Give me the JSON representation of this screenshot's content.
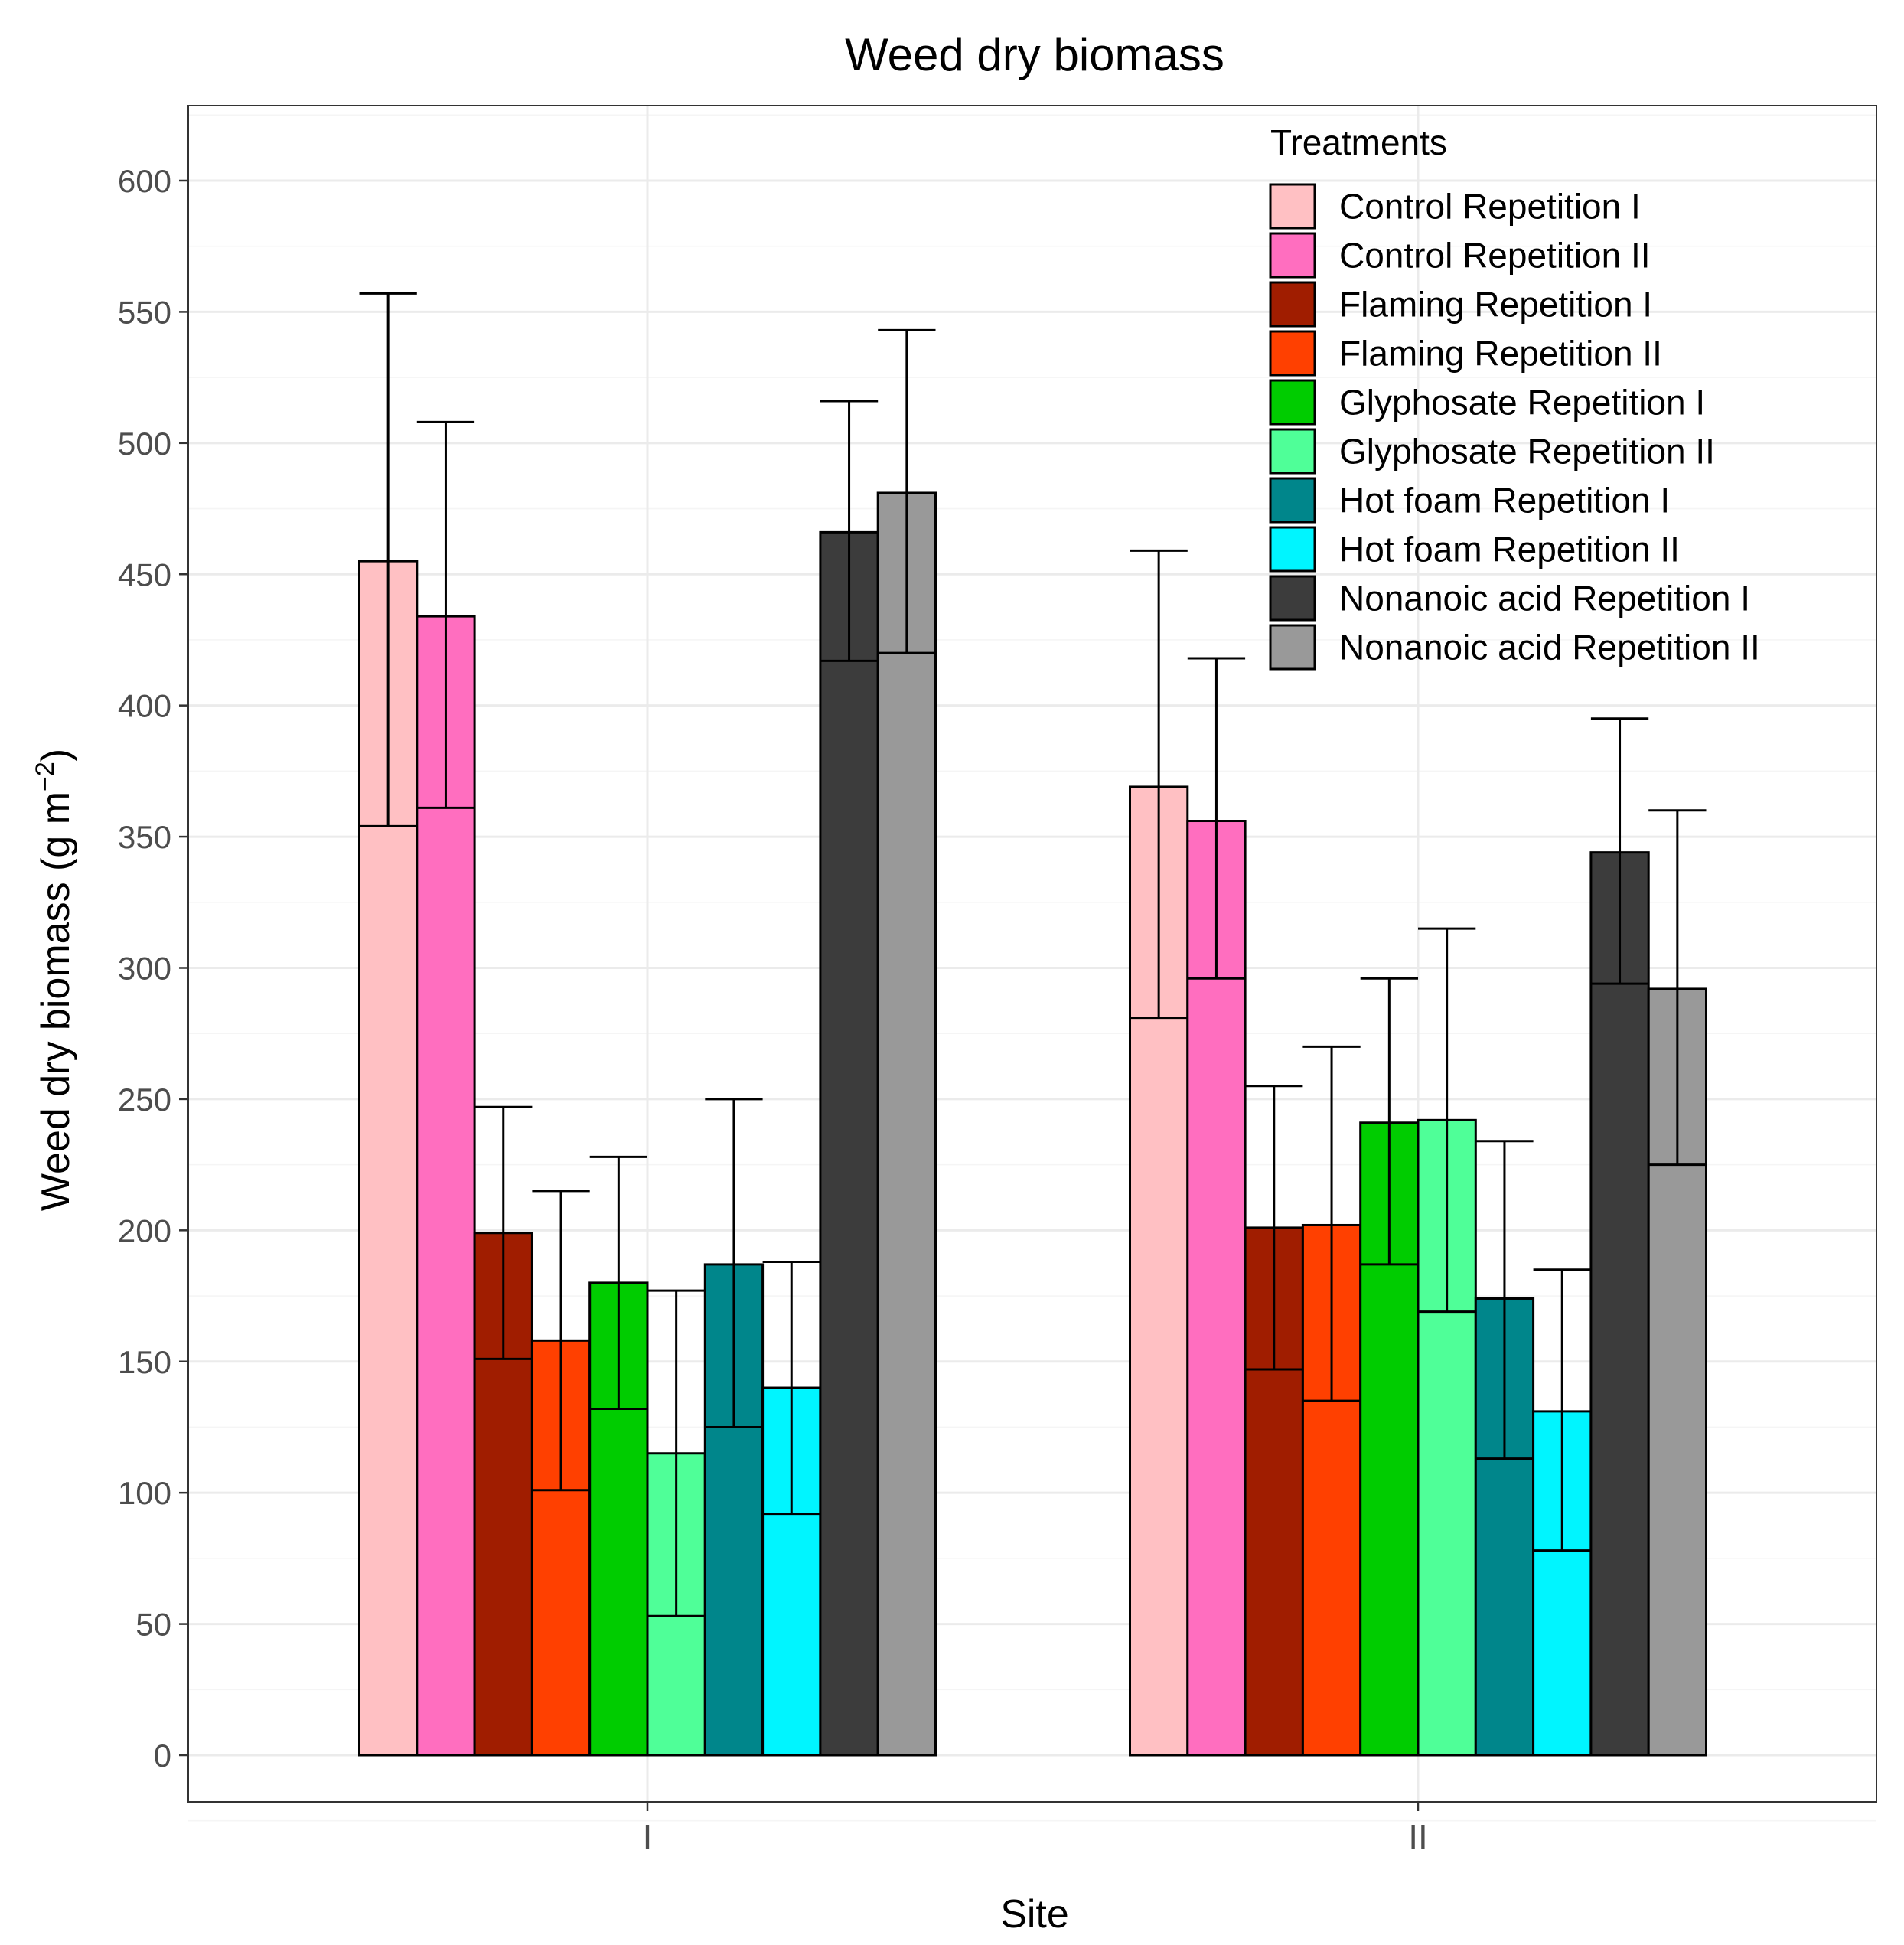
{
  "chart_data": {
    "type": "bar",
    "title": "Weed dry biomass",
    "xlabel": "Site",
    "ylabel": "Weed dry biomass (g m",
    "ylabel_superscript": "−2",
    "ylabel_close": ")",
    "ylim": [
      -25,
      630
    ],
    "yticks": [
      0,
      50,
      100,
      150,
      200,
      250,
      300,
      350,
      400,
      450,
      500,
      550,
      600
    ],
    "categories": [
      "I",
      "II"
    ],
    "legend": {
      "title": "Treatments",
      "position": "top-right"
    },
    "grid": true,
    "series": [
      {
        "name": "Control Repetition I",
        "color": "#FFC0C3",
        "values": [
          455,
          369
        ],
        "err_low": [
          354,
          281
        ],
        "err_high": [
          557,
          459
        ]
      },
      {
        "name": "Control Repetition II",
        "color": "#FF6EBF",
        "values": [
          434,
          356
        ],
        "err_low": [
          361,
          296
        ],
        "err_high": [
          508,
          418
        ]
      },
      {
        "name": "Flaming Repetition I",
        "color": "#A01D00",
        "values": [
          199,
          201
        ],
        "err_low": [
          151,
          147
        ],
        "err_high": [
          247,
          255
        ]
      },
      {
        "name": "Flaming Repetition II",
        "color": "#FF4000",
        "values": [
          158,
          202
        ],
        "err_low": [
          101,
          135
        ],
        "err_high": [
          215,
          270
        ]
      },
      {
        "name": "Glyphosate Repetition I",
        "color": "#00CC00",
        "values": [
          180,
          241
        ],
        "err_low": [
          132,
          187
        ],
        "err_high": [
          228,
          296
        ]
      },
      {
        "name": "Glyphosate Repetition II",
        "color": "#4FFF98",
        "values": [
          115,
          242
        ],
        "err_low": [
          53,
          169
        ],
        "err_high": [
          177,
          315
        ]
      },
      {
        "name": "Hot foam Repetition I",
        "color": "#00868B",
        "values": [
          187,
          174
        ],
        "err_low": [
          125,
          113
        ],
        "err_high": [
          250,
          234
        ]
      },
      {
        "name": "Hot foam Repetition II",
        "color": "#00F5FF",
        "values": [
          140,
          131
        ],
        "err_low": [
          92,
          78
        ],
        "err_high": [
          188,
          185
        ]
      },
      {
        "name": "Nonanoic acid Repetition I",
        "color": "#3C3C3C",
        "values": [
          466,
          344
        ],
        "err_low": [
          417,
          294
        ],
        "err_high": [
          516,
          395
        ]
      },
      {
        "name": "Nonanoic acid Repetition II",
        "color": "#999999",
        "values": [
          481,
          292
        ],
        "err_low": [
          420,
          225
        ],
        "err_high": [
          543,
          360
        ]
      }
    ]
  }
}
